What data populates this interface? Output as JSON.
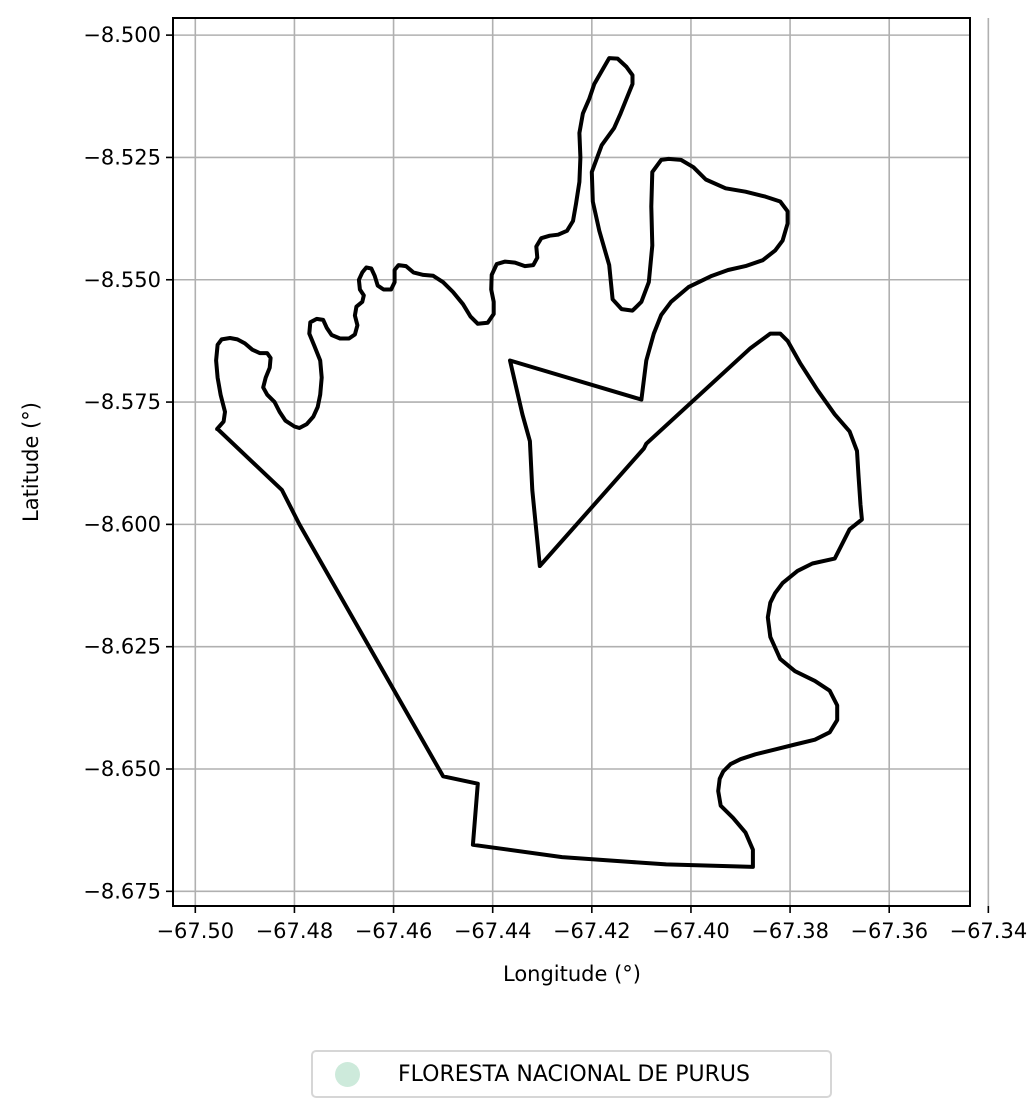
{
  "chart_data": {
    "type": "map",
    "xlabel": "Longitude (°)",
    "ylabel": "Latitude (°)",
    "xlim": [
      -67.5045,
      -67.3437
    ],
    "ylim": [
      -8.678,
      -8.4965
    ],
    "xticks": [
      -67.5,
      -67.48,
      -67.46,
      -67.44,
      -67.42,
      -67.4,
      -67.38,
      -67.36,
      -67.34
    ],
    "xtick_labels": [
      "−67.50",
      "−67.48",
      "−67.46",
      "−67.44",
      "−67.42",
      "−67.40",
      "−67.38",
      "−67.36",
      "−67.34"
    ],
    "yticks": [
      -8.5,
      -8.525,
      -8.55,
      -8.575,
      -8.6,
      -8.625,
      -8.65,
      -8.675
    ],
    "ytick_labels": [
      "−8.500",
      "−8.525",
      "−8.550",
      "−8.575",
      "−8.600",
      "−8.625",
      "−8.650",
      "−8.675"
    ],
    "grid": true,
    "legend": {
      "placement": "bottom-center",
      "entries": [
        {
          "label": "FLORESTA NACIONAL DE PURUS",
          "color": "#cdeadb"
        }
      ]
    },
    "boundary_color": "#000000",
    "fill_color": "#cdeadb",
    "boundary": [
      [
        -67.4956,
        -8.5805
      ],
      [
        -67.4943,
        -8.579
      ],
      [
        -67.494,
        -8.577
      ],
      [
        -67.4949,
        -8.5735
      ],
      [
        -67.4955,
        -8.57
      ],
      [
        -67.4958,
        -8.5665
      ],
      [
        -67.4955,
        -8.5633
      ],
      [
        -67.4947,
        -8.5622
      ],
      [
        -67.493,
        -8.5619
      ],
      [
        -67.4915,
        -8.5622
      ],
      [
        -67.49,
        -8.563
      ],
      [
        -67.4885,
        -8.5643
      ],
      [
        -67.487,
        -8.565
      ],
      [
        -67.4855,
        -8.565
      ],
      [
        -67.4848,
        -8.566
      ],
      [
        -67.485,
        -8.568
      ],
      [
        -67.4858,
        -8.57
      ],
      [
        -67.4863,
        -8.572
      ],
      [
        -67.4855,
        -8.5735
      ],
      [
        -67.484,
        -8.575
      ],
      [
        -67.483,
        -8.577
      ],
      [
        -67.4818,
        -8.5788
      ],
      [
        -67.48,
        -8.58
      ],
      [
        -67.479,
        -8.5803
      ],
      [
        -67.4775,
        -8.5795
      ],
      [
        -67.4762,
        -8.578
      ],
      [
        -67.4753,
        -8.576
      ],
      [
        -67.4748,
        -8.5735
      ],
      [
        -67.4745,
        -8.57
      ],
      [
        -67.4748,
        -8.5665
      ],
      [
        -67.476,
        -8.5635
      ],
      [
        -67.477,
        -8.561
      ],
      [
        -67.4768,
        -8.5587
      ],
      [
        -67.4755,
        -8.558
      ],
      [
        -67.4742,
        -8.5582
      ],
      [
        -67.4735,
        -8.5598
      ],
      [
        -67.4725,
        -8.5613
      ],
      [
        -67.4708,
        -8.562
      ],
      [
        -67.469,
        -8.562
      ],
      [
        -67.4678,
        -8.5612
      ],
      [
        -67.4673,
        -8.5593
      ],
      [
        -67.4678,
        -8.5573
      ],
      [
        -67.4675,
        -8.5555
      ],
      [
        -67.4663,
        -8.5545
      ],
      [
        -67.466,
        -8.5532
      ],
      [
        -67.4668,
        -8.552
      ],
      [
        -67.467,
        -8.55
      ],
      [
        -67.4663,
        -8.5485
      ],
      [
        -67.4655,
        -8.5475
      ],
      [
        -67.4645,
        -8.5477
      ],
      [
        -67.4638,
        -8.5492
      ],
      [
        -67.4632,
        -8.5512
      ],
      [
        -67.462,
        -8.552
      ],
      [
        -67.4605,
        -8.552
      ],
      [
        -67.4598,
        -8.5505
      ],
      [
        -67.4598,
        -8.548
      ],
      [
        -67.459,
        -8.547
      ],
      [
        -67.4575,
        -8.5472
      ],
      [
        -67.456,
        -8.5485
      ],
      [
        -67.454,
        -8.549
      ],
      [
        -67.452,
        -8.5492
      ],
      [
        -67.45,
        -8.5505
      ],
      [
        -67.448,
        -8.5525
      ],
      [
        -67.446,
        -8.555
      ],
      [
        -67.4445,
        -8.5575
      ],
      [
        -67.443,
        -8.559
      ],
      [
        -67.441,
        -8.5588
      ],
      [
        -67.4398,
        -8.557
      ],
      [
        -67.4398,
        -8.5545
      ],
      [
        -67.4403,
        -8.552
      ],
      [
        -67.4402,
        -8.549
      ],
      [
        -67.4392,
        -8.5468
      ],
      [
        -67.4375,
        -8.5463
      ],
      [
        -67.4355,
        -8.5465
      ],
      [
        -67.4335,
        -8.5472
      ],
      [
        -67.4318,
        -8.547
      ],
      [
        -67.431,
        -8.5455
      ],
      [
        -67.4312,
        -8.5432
      ],
      [
        -67.4302,
        -8.5415
      ],
      [
        -67.4285,
        -8.541
      ],
      [
        -67.4268,
        -8.5408
      ],
      [
        -67.425,
        -8.54
      ],
      [
        -67.4238,
        -8.538
      ],
      [
        -67.4232,
        -8.5345
      ],
      [
        -67.4225,
        -8.53
      ],
      [
        -67.4223,
        -8.525
      ],
      [
        -67.4225,
        -8.52
      ],
      [
        -67.4218,
        -8.516
      ],
      [
        -67.4205,
        -8.513
      ],
      [
        -67.4195,
        -8.51
      ],
      [
        -67.4178,
        -8.507
      ],
      [
        -67.4165,
        -8.5047
      ],
      [
        -67.4148,
        -8.5048
      ],
      [
        -67.413,
        -8.5065
      ],
      [
        -67.4118,
        -8.5082
      ],
      [
        -67.4118,
        -8.51
      ],
      [
        -67.413,
        -8.513
      ],
      [
        -67.4142,
        -8.516
      ],
      [
        -67.4155,
        -8.519
      ],
      [
        -67.418,
        -8.5225
      ],
      [
        -67.42,
        -8.528
      ],
      [
        -67.4198,
        -8.534
      ],
      [
        -67.4185,
        -8.54
      ],
      [
        -67.4165,
        -8.547
      ],
      [
        -67.4158,
        -8.554
      ],
      [
        -67.414,
        -8.556
      ],
      [
        -67.4118,
        -8.5563
      ],
      [
        -67.41,
        -8.5545
      ],
      [
        -67.4085,
        -8.5505
      ],
      [
        -67.4078,
        -8.543
      ],
      [
        -67.408,
        -8.535
      ],
      [
        -67.4078,
        -8.528
      ],
      [
        -67.406,
        -8.5255
      ],
      [
        -67.4045,
        -8.5253
      ],
      [
        -67.402,
        -8.5255
      ],
      [
        -67.3995,
        -8.527
      ],
      [
        -67.397,
        -8.5295
      ],
      [
        -67.393,
        -8.5313
      ],
      [
        -67.389,
        -8.532
      ],
      [
        -67.385,
        -8.533
      ],
      [
        -67.382,
        -8.534
      ],
      [
        -67.3805,
        -8.536
      ],
      [
        -67.3805,
        -8.5385
      ],
      [
        -67.3815,
        -8.542
      ],
      [
        -67.383,
        -8.544
      ],
      [
        -67.3855,
        -8.546
      ],
      [
        -67.389,
        -8.5472
      ],
      [
        -67.3925,
        -8.548
      ],
      [
        -67.396,
        -8.5493
      ],
      [
        -67.4005,
        -8.5515
      ],
      [
        -67.404,
        -8.5545
      ],
      [
        -67.406,
        -8.5572
      ],
      [
        -67.4075,
        -8.561
      ],
      [
        -67.409,
        -8.5665
      ],
      [
        -67.41,
        -8.5745
      ],
      [
        -67.4365,
        -8.5665
      ],
      [
        -67.434,
        -8.5775
      ],
      [
        -67.4325,
        -8.583
      ],
      [
        -67.432,
        -8.593
      ],
      [
        -67.4305,
        -8.6085
      ],
      [
        -67.4095,
        -8.5845
      ],
      [
        -67.409,
        -8.5835
      ],
      [
        -67.388,
        -8.564
      ],
      [
        -67.384,
        -8.561
      ],
      [
        -67.382,
        -8.561
      ],
      [
        -67.3805,
        -8.5625
      ],
      [
        -67.378,
        -8.567
      ],
      [
        -67.3745,
        -8.5725
      ],
      [
        -67.371,
        -8.5775
      ],
      [
        -67.368,
        -8.581
      ],
      [
        -67.3665,
        -8.585
      ],
      [
        -67.3662,
        -8.59
      ],
      [
        -67.3658,
        -8.596
      ],
      [
        -67.3655,
        -8.599
      ],
      [
        -67.368,
        -8.601
      ],
      [
        -67.371,
        -8.607
      ],
      [
        -67.3755,
        -8.608
      ],
      [
        -67.3785,
        -8.6095
      ],
      [
        -67.3815,
        -8.612
      ],
      [
        -67.383,
        -8.614
      ],
      [
        -67.384,
        -8.616
      ],
      [
        -67.3845,
        -8.619
      ],
      [
        -67.384,
        -8.623
      ],
      [
        -67.382,
        -8.6275
      ],
      [
        -67.379,
        -8.63
      ],
      [
        -67.375,
        -8.632
      ],
      [
        -67.372,
        -8.634
      ],
      [
        -67.3705,
        -8.637
      ],
      [
        -67.3705,
        -8.64
      ],
      [
        -67.372,
        -8.6425
      ],
      [
        -67.375,
        -8.644
      ],
      [
        -67.379,
        -8.645
      ],
      [
        -67.383,
        -8.646
      ],
      [
        -67.387,
        -8.647
      ],
      [
        -67.39,
        -8.648
      ],
      [
        -67.392,
        -8.649
      ],
      [
        -67.3935,
        -8.6505
      ],
      [
        -67.3942,
        -8.652
      ],
      [
        -67.3945,
        -8.6545
      ],
      [
        -67.394,
        -8.6575
      ],
      [
        -67.3915,
        -8.66
      ],
      [
        -67.389,
        -8.663
      ],
      [
        -67.3875,
        -8.6665
      ],
      [
        -67.3875,
        -8.67
      ],
      [
        -67.405,
        -8.6695
      ],
      [
        -67.412,
        -8.669
      ],
      [
        -67.426,
        -8.668
      ],
      [
        -67.444,
        -8.6655
      ],
      [
        -67.443,
        -8.653
      ],
      [
        -67.45,
        -8.6515
      ],
      [
        -67.479,
        -8.6
      ],
      [
        -67.4825,
        -8.593
      ],
      [
        -67.4955,
        -8.5805
      ]
    ]
  }
}
